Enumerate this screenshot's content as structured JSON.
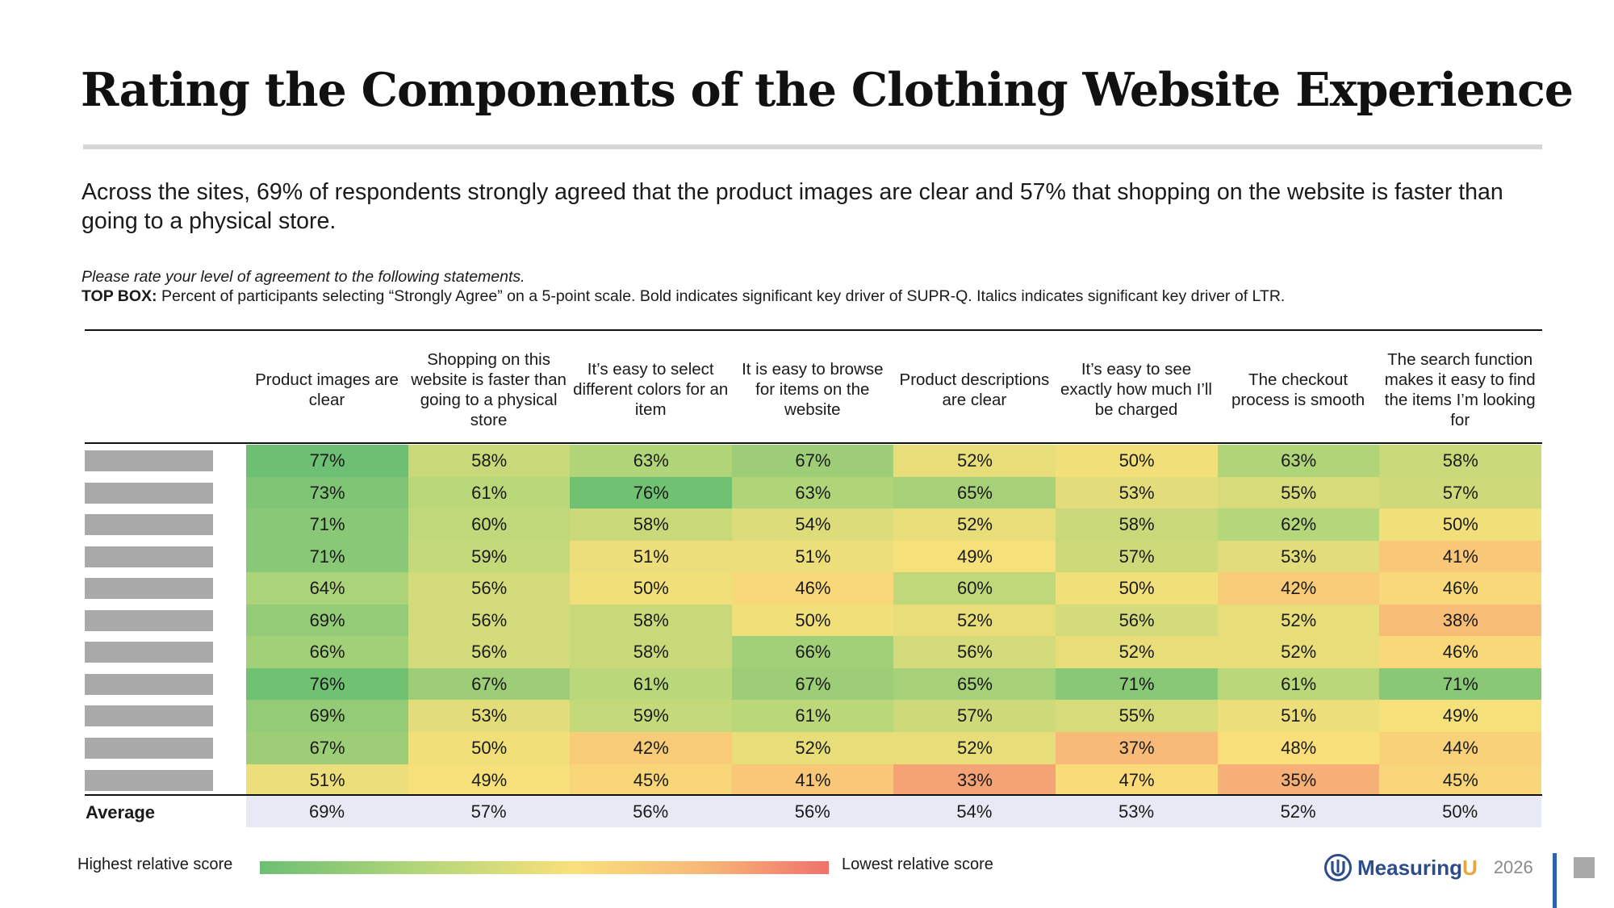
{
  "title": "Rating the Components of the Clothing Website Experience",
  "subtitle": "Across the sites, 69% of respondents strongly agreed that the product images are clear and 57% that shopping on the website is faster than going to a physical store.",
  "question": "Please rate your level of agreement to the following statements.",
  "topbox_label": "TOP BOX:",
  "topbox_text": " Percent of participants selecting “Strongly Agree” on a 5-point scale. Bold indicates significant key driver of SUPR-Q. Italics indicates significant key driver of LTR.",
  "chart_data": {
    "type": "table",
    "title": "Rating the Components of the Clothing Website Experience",
    "columns": [
      "Product images are clear",
      "Shopping on this website is faster than going to a physical store",
      "It’s easy to select different colors for an item",
      "It is easy to browse for items on the website",
      "Product descriptions are clear",
      "It’s easy to see exactly how much I’ll be charged",
      "The checkout process is smooth",
      "The search function makes it easy to find the items I’m looking for"
    ],
    "rows": [
      [
        "77%",
        "58%",
        "63%",
        "67%",
        "52%",
        "50%",
        "63%",
        "58%"
      ],
      [
        "73%",
        "61%",
        "76%",
        "63%",
        "65%",
        "53%",
        "55%",
        "57%"
      ],
      [
        "71%",
        "60%",
        "58%",
        "54%",
        "52%",
        "58%",
        "62%",
        "50%"
      ],
      [
        "71%",
        "59%",
        "51%",
        "51%",
        "49%",
        "57%",
        "53%",
        "41%"
      ],
      [
        "64%",
        "56%",
        "50%",
        "46%",
        "60%",
        "50%",
        "42%",
        "46%"
      ],
      [
        "69%",
        "56%",
        "58%",
        "50%",
        "52%",
        "56%",
        "52%",
        "38%"
      ],
      [
        "66%",
        "56%",
        "58%",
        "66%",
        "56%",
        "52%",
        "52%",
        "46%"
      ],
      [
        "76%",
        "67%",
        "61%",
        "67%",
        "65%",
        "71%",
        "61%",
        "71%"
      ],
      [
        "69%",
        "53%",
        "59%",
        "61%",
        "57%",
        "55%",
        "51%",
        "49%"
      ],
      [
        "67%",
        "50%",
        "42%",
        "52%",
        "52%",
        "37%",
        "48%",
        "44%"
      ],
      [
        "51%",
        "49%",
        "45%",
        "41%",
        "33%",
        "47%",
        "35%",
        "45%"
      ]
    ],
    "average_label": "Average",
    "averages": [
      "69%",
      "57%",
      "56%",
      "56%",
      "54%",
      "53%",
      "52%",
      "50%"
    ],
    "colors": {
      "high": "#6cbf73",
      "mid_high": "#b8d77a",
      "mid": "#f9e07a",
      "mid_low": "#f7b877",
      "low": "#f0716c"
    }
  },
  "legend": {
    "high_label": "Highest relative score",
    "low_label": "Lowest relative score"
  },
  "brand": {
    "name_main": "Measuring",
    "name_accent": "U",
    "year": "2026"
  }
}
